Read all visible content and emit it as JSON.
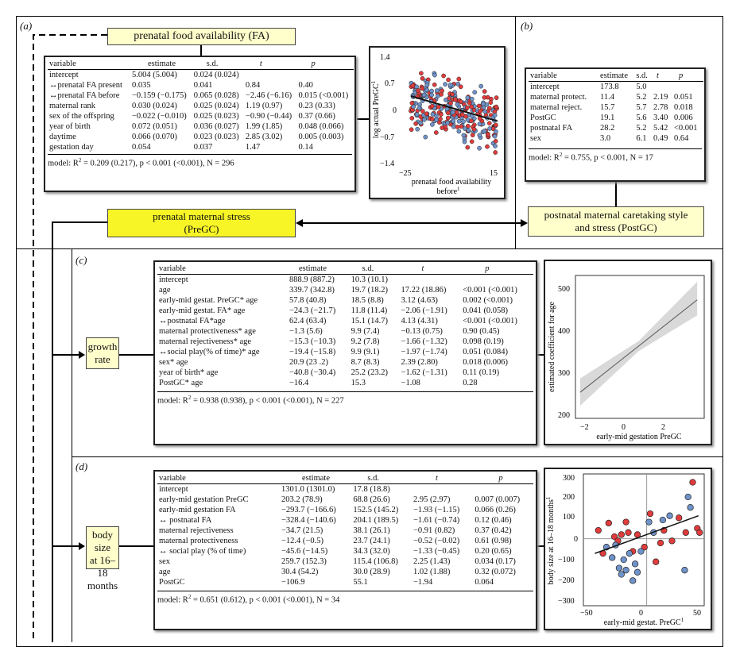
{
  "panels": {
    "a": {
      "label": "(a)",
      "fa_box": "prenatal food availability (FA)",
      "pregc_box": [
        "prenatal maternal stress",
        "(PreGC)"
      ],
      "table": {
        "headers": [
          "variable",
          "estimate",
          "s.d.",
          "t",
          "p"
        ],
        "rows": [
          [
            "intercept",
            "5.004 (5.004)",
            "0.024 (0.024)",
            "",
            ""
          ],
          [
            "↔prenatal FA present",
            "0.035",
            "0.041",
            "0.84",
            "0.40"
          ],
          [
            "↔prenatal FA before",
            "−0.159 (−0.175)",
            "0.065 (0.028)",
            "−2.46 (−6.16)",
            "0.015 (<0.001)"
          ],
          [
            "maternal rank",
            "0.030 (0.024)",
            "0.025 (0.024)",
            "1.19 (0.97)",
            "0.23 (0.33)"
          ],
          [
            "sex of the offspring",
            "−0.022 (−0.010)",
            "0.025 (0.023)",
            "−0.90 (−0.44)",
            "0.37 (0.66)"
          ],
          [
            "year of birth",
            "0.072 (0.051)",
            "0.036 (0.027)",
            "1.99 (1.85)",
            "0.048 (0.066)"
          ],
          [
            "daytime",
            "0.066 (0.070)",
            "0.023 (0.023)",
            "2.85 (3.02)",
            "0.005 (0.003)"
          ],
          [
            "gestation day",
            "0.054",
            "0.037",
            "1.47",
            "0.14"
          ]
        ],
        "model_prefix": "model: ",
        "model_text": " = 0.209 (0.217), p < 0.001 (<0.001), N = 296"
      },
      "plot": {
        "ylabel": "log actual PreGC",
        "ylabel_sup": "1",
        "xlabel_line1": "prenatal food availability",
        "xlabel_line2": "before",
        "xlabel_sup": "1",
        "yticks": [
          "1.4",
          "0.7",
          "0",
          "−0.7",
          "−1.4"
        ],
        "xticks": [
          "−25",
          "15"
        ]
      }
    },
    "b": {
      "label": "(b)",
      "postgc_box": [
        "postnatal maternal caretaking style",
        "and stress (PostGC)"
      ],
      "table": {
        "headers": [
          "variable",
          "estimate",
          "s.d.",
          "t",
          "p"
        ],
        "rows": [
          [
            "intercept",
            "173.8",
            "5.0",
            "",
            ""
          ],
          [
            "maternal protect.",
            "11.4",
            "5.2",
            "2.19",
            "0.051"
          ],
          [
            "maternal reject.",
            "15.7",
            "5.7",
            "2.78",
            "0.018"
          ],
          [
            "PostGC",
            "19.1",
            "5.6",
            "3.40",
            "0.006"
          ],
          [
            "postnatal FA",
            "28.2",
            "5.2",
            "5.42",
            "<0.001"
          ],
          [
            "sex",
            "3.0",
            "6.1",
            "0.49",
            "0.64"
          ]
        ],
        "model_prefix": "model: ",
        "model_text": " = 0.755, p < 0.001, N = 17"
      }
    },
    "c": {
      "label": "(c)",
      "box": [
        "growth",
        "rate"
      ],
      "table": {
        "headers": [
          "variable",
          "estimate",
          "s.d.",
          "t",
          "p"
        ],
        "rows": [
          [
            "intercept",
            "888.9 (887.2)",
            "10.3 (10.1)",
            "",
            ""
          ],
          [
            "age",
            "339.7 (342.8)",
            "19.7 (18.2)",
            "17.22 (18.86)",
            "<0.001 (<0.001)"
          ],
          [
            "early-mid gestat. PreGC* age",
            "57.8 (40.8)",
            "18.5 (8.8)",
            "3.12 (4.63)",
            "0.002 (<0.001)"
          ],
          [
            "early-mid gestat. FA* age",
            "−24.3 (−21.7)",
            "11.8 (11.4)",
            "−2.06 (−1.91)",
            "0.041 (0.058)"
          ],
          [
            "↔postnatal FA*age",
            "62.4 (63.4)",
            "15.1 (14.7)",
            "4.13 (4.31)",
            "<0.001 (<0.001)"
          ],
          [
            "maternal protectiveness* age",
            "−1.3 (5.6)",
            "9.9 (7.4)",
            "−0.13 (0.75)",
            "0.90 (0.45)"
          ],
          [
            "maternal rejectiveness* age",
            "−15.3 (−10.3)",
            "9.2 (7.8)",
            "−1.66 (−1.32)",
            "0.098 (0.19)"
          ],
          [
            "↔social play(% of time)* age",
            "−19.4 (−15.8)",
            "9.9 (9.1)",
            "−1.97 (−1.74)",
            "0.051 (0.084)"
          ],
          [
            "sex* age",
            "20.9 (23 .2)",
            "8.7 (8.3)",
            "2.39 (2.80)",
            "0.018 (0.006)"
          ],
          [
            "year of birth* age",
            "−40.8 (−30.4)",
            "25.2 (23.2)",
            "−1.62 (−1.31)",
            "0.11 (0.19)"
          ],
          [
            "PostGC* age",
            "−16.4",
            "15.3",
            "−1.08",
            "0.28"
          ]
        ],
        "model_prefix": "model: ",
        "model_text": " = 0.938 (0.938), p < 0.001 (<0.001), N = 227"
      },
      "plot": {
        "ylabel": "estimated coefficient for age",
        "xlabel": "early-mid gestation PreGC",
        "yticks": [
          "500",
          "400",
          "300",
          "200"
        ],
        "xticks": [
          "−2",
          "0",
          "2"
        ]
      }
    },
    "d": {
      "label": "(d)",
      "box": [
        "body size",
        "at 16–18",
        "months"
      ],
      "table": {
        "headers": [
          "variable",
          "estimate",
          "s.d.",
          "t",
          "p"
        ],
        "rows": [
          [
            "intercept",
            "1301.0 (1301.0)",
            "17.8 (18.8)",
            "",
            ""
          ],
          [
            "early-mid gestation PreGC",
            "203.2 (78.9)",
            "68.8 (26.6)",
            "2.95 (2.97)",
            "0.007 (0.007)"
          ],
          [
            "early-mid gestation FA",
            "−293.7 (−166.6)",
            "152.5 (145.2)",
            "−1.93 (−1.15)",
            "0.066 (0.26)"
          ],
          [
            "↔ postnatal FA",
            "−328.4 (−140.6)",
            "204.1 (189.5)",
            "−1.61 (−0.74)",
            "0.12 (0.46)"
          ],
          [
            "maternal rejectiveness",
            "−34.7 (21.5)",
            "38.1 (26.1)",
            "−0.91 (0.82)",
            "0.37 (0.42)"
          ],
          [
            "maternal protectiveness",
            "−12.4 (−0.5)",
            "23.7 (24.1)",
            "−0.52 (−0.02)",
            "0.61 (0.98)"
          ],
          [
            "↔ social play (% of time)",
            "−45.6 (−14.5)",
            "34.3 (32.0)",
            "−1.33 (−0.45)",
            "0.20 (0.65)"
          ],
          [
            "sex",
            "259.7 (152.3)",
            "115.4 (106.8)",
            "2.25 (1.43)",
            "0.034 (0.17)"
          ],
          [
            "age",
            "30.4 (54.2)",
            "30.0 (28.9)",
            "1.02 (1.88)",
            "0.32 (0.072)"
          ],
          [
            "PostGC",
            "−106.9",
            "55.1",
            "−1.94",
            "0.064"
          ]
        ],
        "model_prefix": "model: ",
        "model_text": " = 0.651 (0.612), p < 0.001 (<0.001), N = 34"
      },
      "plot": {
        "ylabel": "body size at 16–18 months",
        "ylabel_sup": "1",
        "xlabel": "early-mid gestat. PreGC",
        "xlabel_sup": "1",
        "yticks": [
          "300",
          "200",
          "100",
          "0",
          "−100",
          "−200",
          "−300"
        ],
        "xticks": [
          "−50",
          "0",
          "50"
        ]
      }
    }
  },
  "colors": {
    "red_points": "#e03c3c",
    "blue_points": "#6f93c9",
    "highlight": "#ffffcc",
    "pregc_fill": "#f7f526"
  },
  "chart_data": [
    {
      "type": "scatter",
      "xlabel": "prenatal food availability before",
      "ylabel": "log actual PreGC",
      "xlim": [
        -25,
        15
      ],
      "ylim": [
        -1.4,
        1.4
      ],
      "fit_line": {
        "x": [
          -22,
          15
        ],
        "y": [
          0.35,
          -0.3
        ]
      }
    },
    {
      "type": "line",
      "xlabel": "early-mid gestation PreGC",
      "ylabel": "estimated coefficient for age",
      "xlim": [
        -2.2,
        3.3
      ],
      "ylim": [
        180,
        520
      ],
      "x": [
        -2,
        3
      ],
      "y": [
        242,
        462
      ],
      "ci_lower": [
        210,
        425
      ],
      "ci_upper": [
        275,
        505
      ]
    },
    {
      "type": "scatter",
      "xlabel": "early-mid gestat. PreGC",
      "ylabel": "body size at 16–18 months",
      "xlim": [
        -55,
        50
      ],
      "ylim": [
        -320,
        310
      ],
      "fit_line": {
        "x": [
          -45,
          45
        ],
        "y": [
          -70,
          110
        ]
      },
      "series": [
        {
          "color": "#e03c3c",
          "points": [
            [
              -42,
              40
            ],
            [
              -38,
              -70
            ],
            [
              -33,
              75
            ],
            [
              -28,
              10
            ],
            [
              -25,
              -10
            ],
            [
              -22,
              20
            ],
            [
              -18,
              80
            ],
            [
              -16,
              30
            ],
            [
              -12,
              -60
            ],
            [
              -8,
              20
            ],
            [
              -2,
              -40
            ],
            [
              3,
              120
            ],
            [
              8,
              -110
            ],
            [
              12,
              -20
            ],
            [
              15,
              40
            ],
            [
              22,
              -10
            ],
            [
              28,
              100
            ],
            [
              34,
              30
            ],
            [
              40,
              270
            ],
            [
              44,
              50
            ],
            [
              46,
              30
            ]
          ]
        },
        {
          "color": "#6f93c9",
          "points": [
            [
              -35,
              -40
            ],
            [
              -30,
              -90
            ],
            [
              -27,
              -30
            ],
            [
              -24,
              -140
            ],
            [
              -22,
              -170
            ],
            [
              -20,
              -100
            ],
            [
              -18,
              -150
            ],
            [
              -15,
              -70
            ],
            [
              -12,
              -200
            ],
            [
              -10,
              -120
            ],
            [
              -8,
              -160
            ],
            [
              -5,
              -60
            ],
            [
              2,
              80
            ],
            [
              6,
              30
            ],
            [
              14,
              90
            ],
            [
              20,
              110
            ],
            [
              33,
              -150
            ],
            [
              36,
              200
            ],
            [
              38,
              150
            ]
          ]
        }
      ]
    }
  ]
}
